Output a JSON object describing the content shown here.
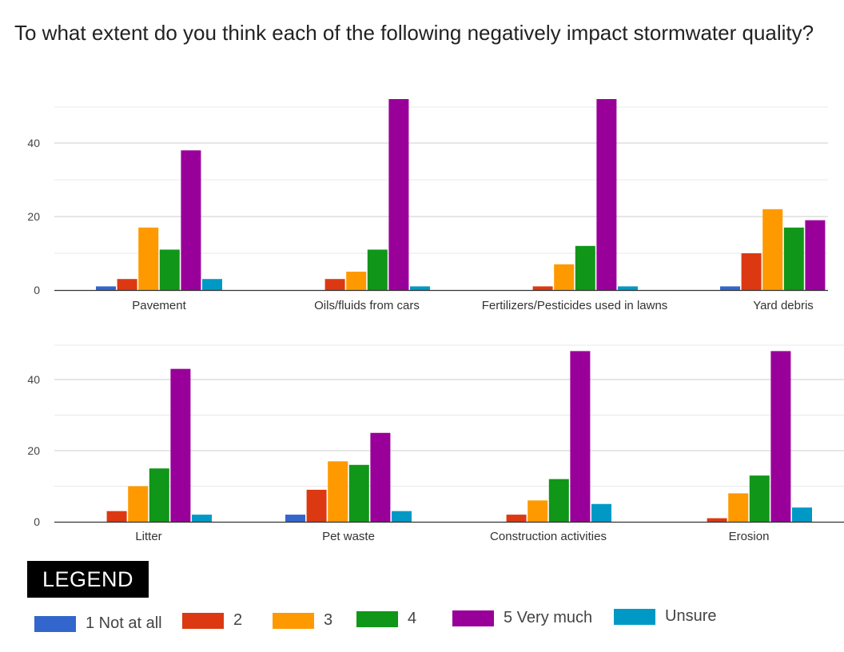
{
  "title": "To what extent do you think each of the following negatively impact stormwater quality?",
  "legend_title": "LEGEND",
  "colors": [
    "#3366cc",
    "#dc3912",
    "#ff9900",
    "#109618",
    "#990099",
    "#0099c6"
  ],
  "chart_data": [
    {
      "type": "bar",
      "categories": [
        "Pavement",
        "Oils/fluids from cars",
        "Fertilizers/Pesticides used in lawns",
        "Yard debris"
      ],
      "series": [
        {
          "name": "1 Not at all",
          "values": [
            1,
            0,
            0,
            1
          ]
        },
        {
          "name": "2",
          "values": [
            3,
            3,
            1,
            10
          ]
        },
        {
          "name": "3",
          "values": [
            17,
            5,
            7,
            22
          ]
        },
        {
          "name": "4",
          "values": [
            11,
            11,
            12,
            17
          ]
        },
        {
          "name": "5 Very much",
          "values": [
            38,
            52,
            52,
            19
          ]
        },
        {
          "name": "Unsure",
          "values": [
            3,
            1,
            1,
            0
          ]
        }
      ],
      "yticks": [
        0,
        20,
        40
      ],
      "ylim": [
        0,
        50
      ],
      "grid": true
    },
    {
      "type": "bar",
      "categories": [
        "Litter",
        "Pet waste",
        "Construction activities",
        "Erosion"
      ],
      "series": [
        {
          "name": "1 Not at all",
          "values": [
            0,
            2,
            0,
            0
          ]
        },
        {
          "name": "2",
          "values": [
            3,
            9,
            2,
            1
          ]
        },
        {
          "name": "3",
          "values": [
            10,
            17,
            6,
            8
          ]
        },
        {
          "name": "4",
          "values": [
            15,
            16,
            12,
            13
          ]
        },
        {
          "name": "5 Very much",
          "values": [
            43,
            25,
            48,
            48
          ]
        },
        {
          "name": "Unsure",
          "values": [
            2,
            3,
            5,
            4
          ]
        }
      ],
      "yticks": [
        0,
        20,
        40
      ],
      "ylim": [
        0,
        50
      ],
      "grid": true
    }
  ]
}
